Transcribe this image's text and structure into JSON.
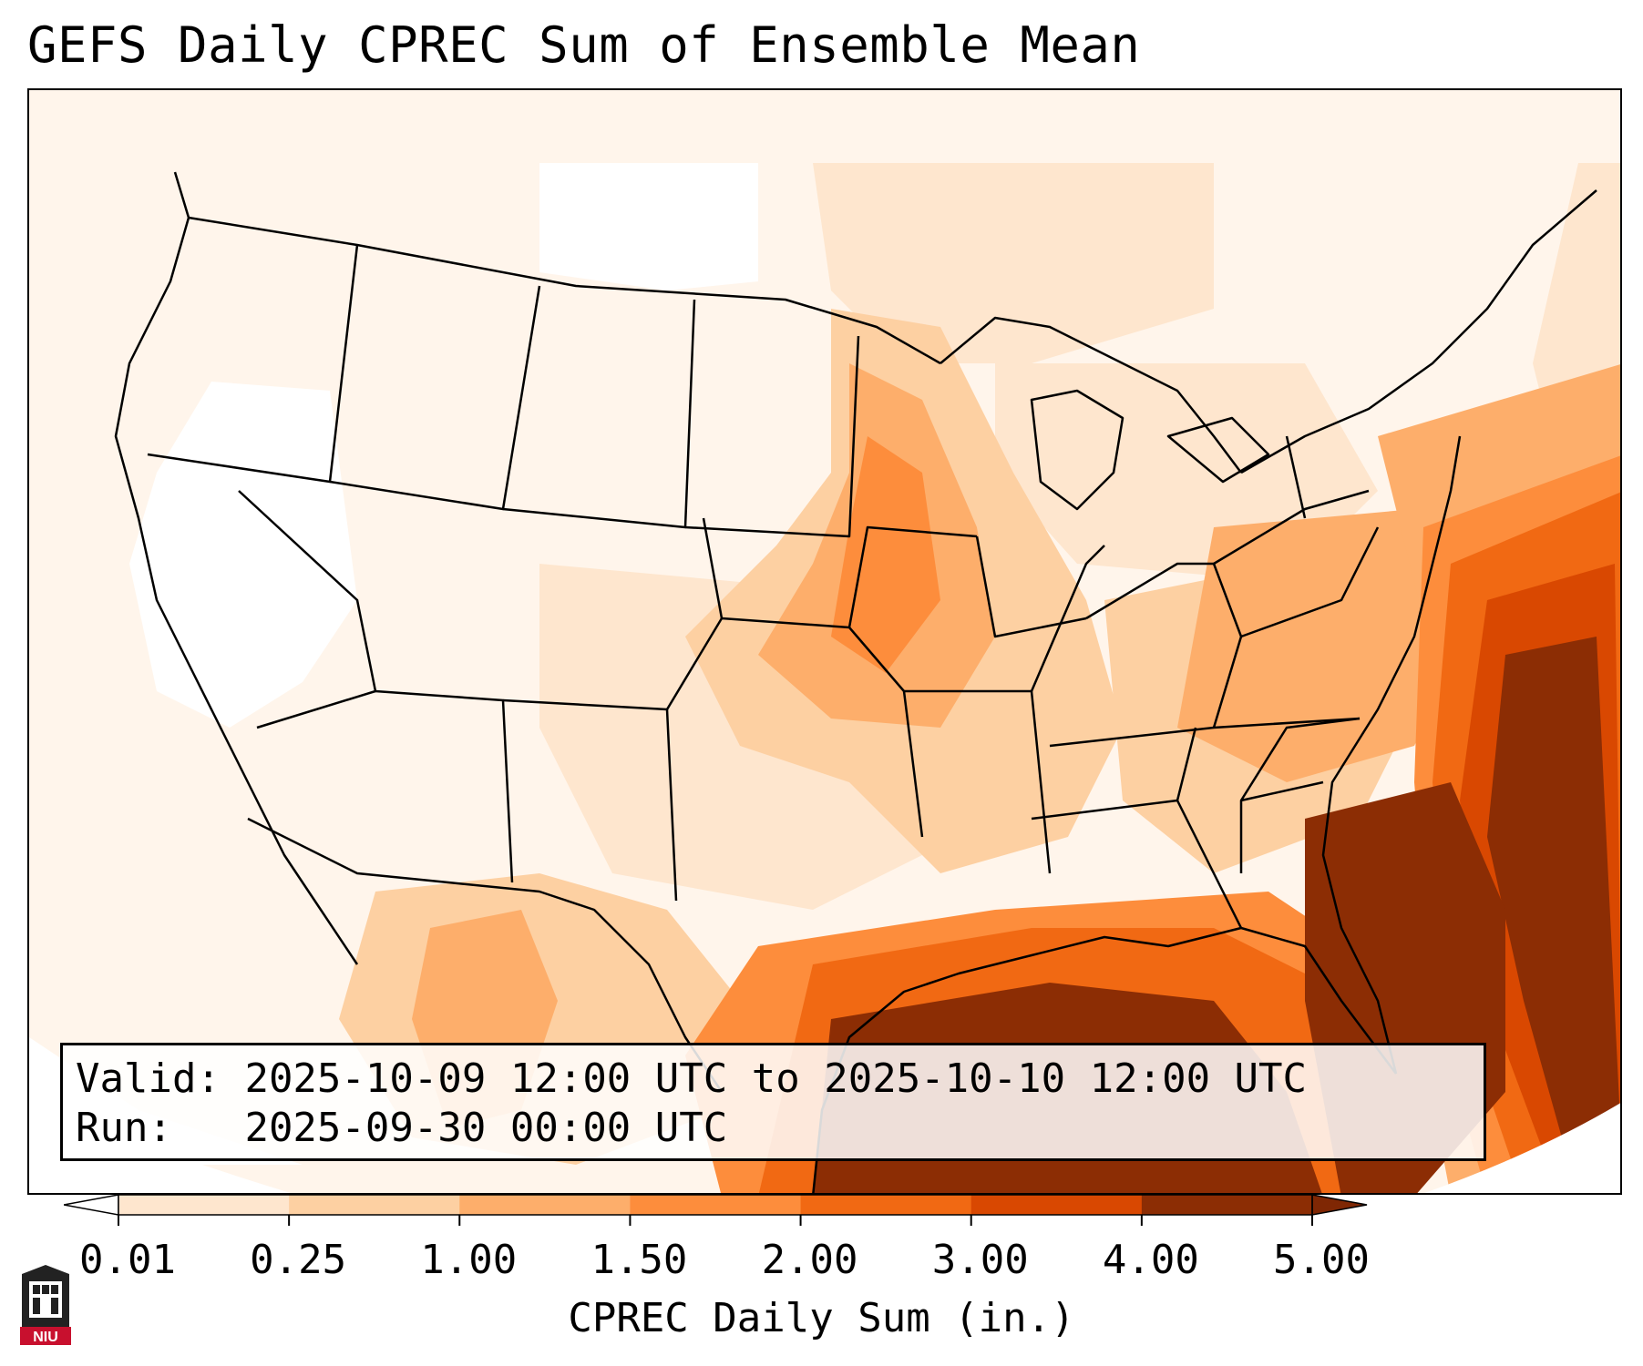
{
  "title": "GEFS Daily CPREC Sum of Ensemble Mean",
  "info": {
    "valid_label": "Valid:",
    "valid_value": "2025-10-09 12:00 UTC to 2025-10-10 12:00 UTC",
    "run_label": "Run:",
    "run_value": "2025-09-30 00:00 UTC"
  },
  "colorbar": {
    "label": "CPREC Daily Sum (in.)",
    "ticks": [
      "0.01",
      "0.25",
      "1.00",
      "1.50",
      "2.00",
      "3.00",
      "4.00",
      "5.00"
    ],
    "colors": [
      "#fff5eb",
      "#fee6ce",
      "#fdd0a2",
      "#fdae6b",
      "#fd8d3c",
      "#f16913",
      "#d94801",
      "#8c2d04"
    ],
    "under_color": "#ffffff",
    "over_color": "#7f2704",
    "extend": "both"
  },
  "logo": {
    "text": "NIU",
    "accent": "#c8102e"
  }
}
